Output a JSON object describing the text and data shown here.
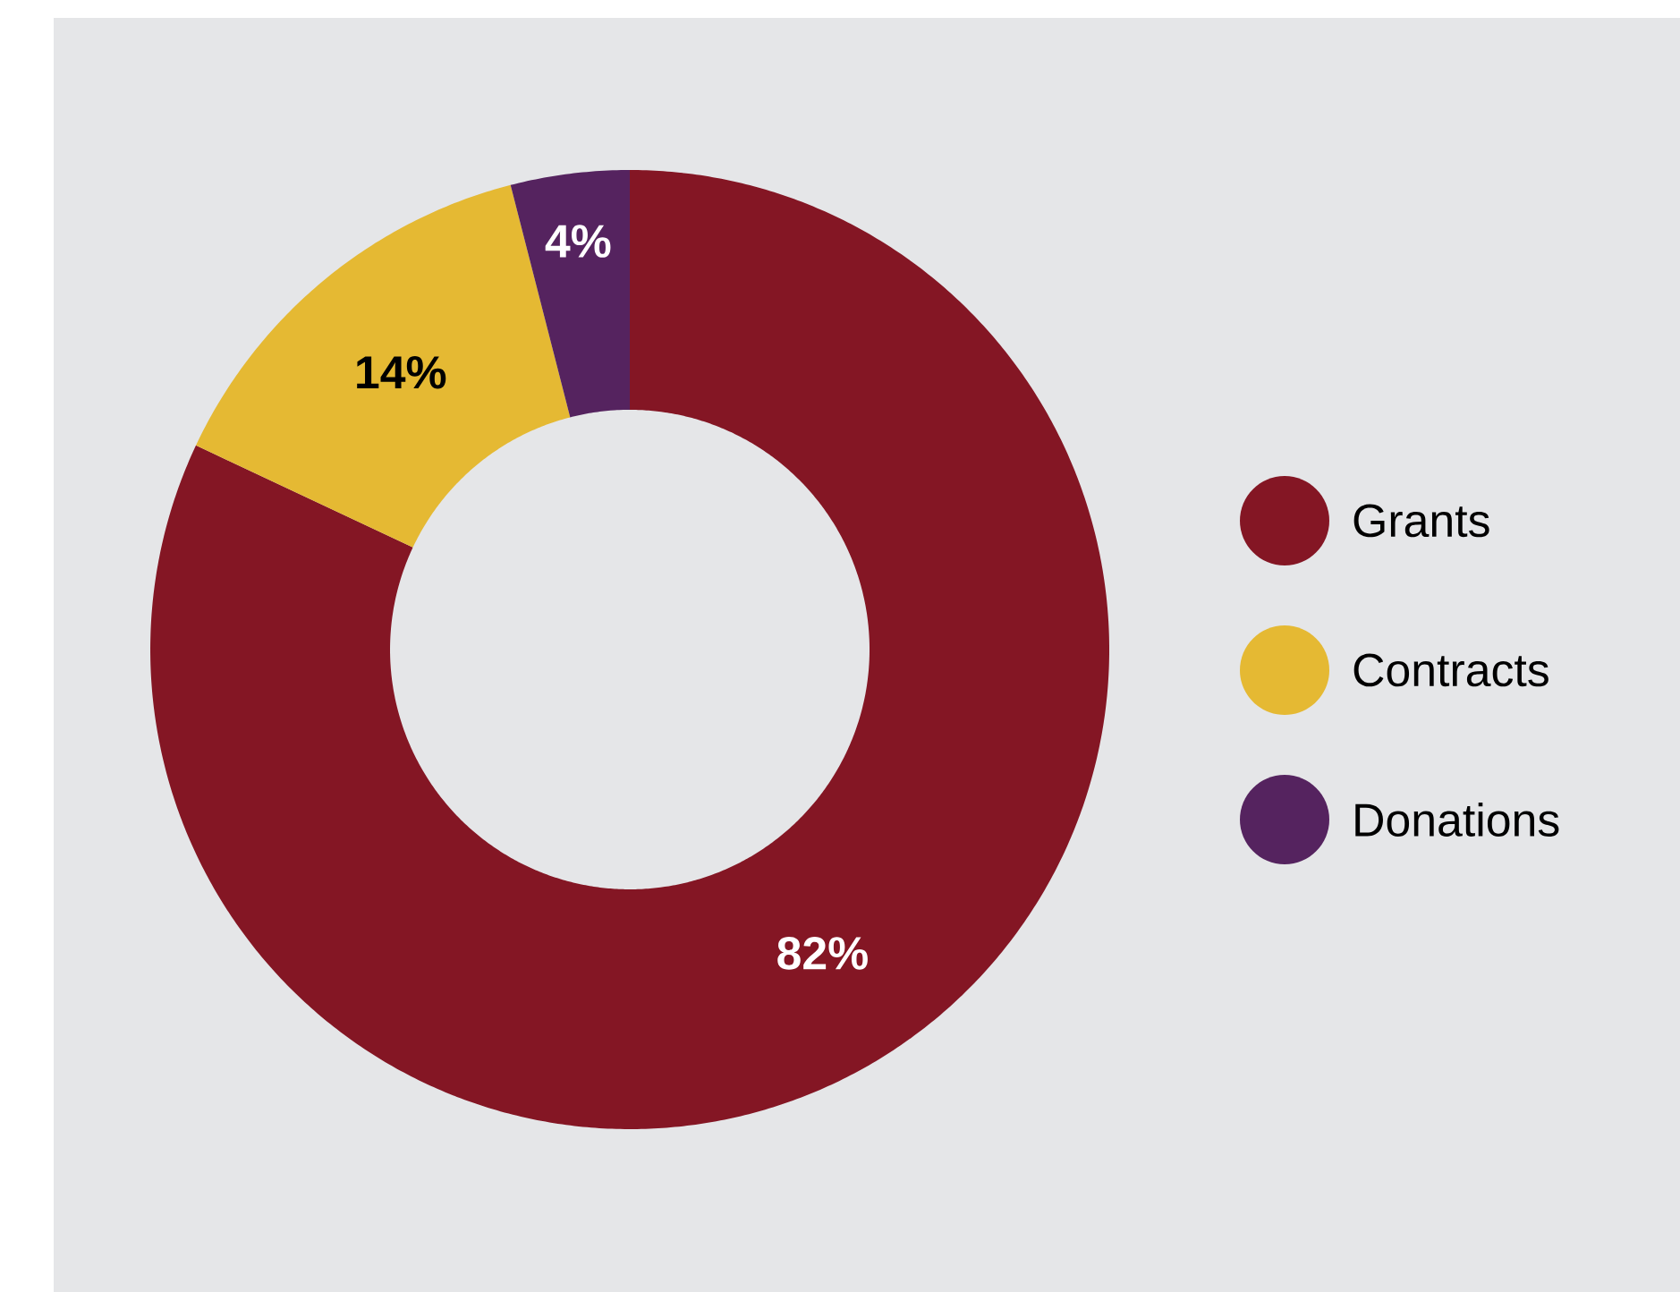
{
  "chart_data": {
    "type": "donut",
    "categories": [
      "Grants",
      "Contracts",
      "Donations"
    ],
    "values": [
      82,
      14,
      4
    ],
    "colors": [
      "#841624",
      "#e5b933",
      "#55235f"
    ],
    "value_labels": [
      "82%",
      "14%",
      "4%"
    ],
    "legend": "right"
  }
}
